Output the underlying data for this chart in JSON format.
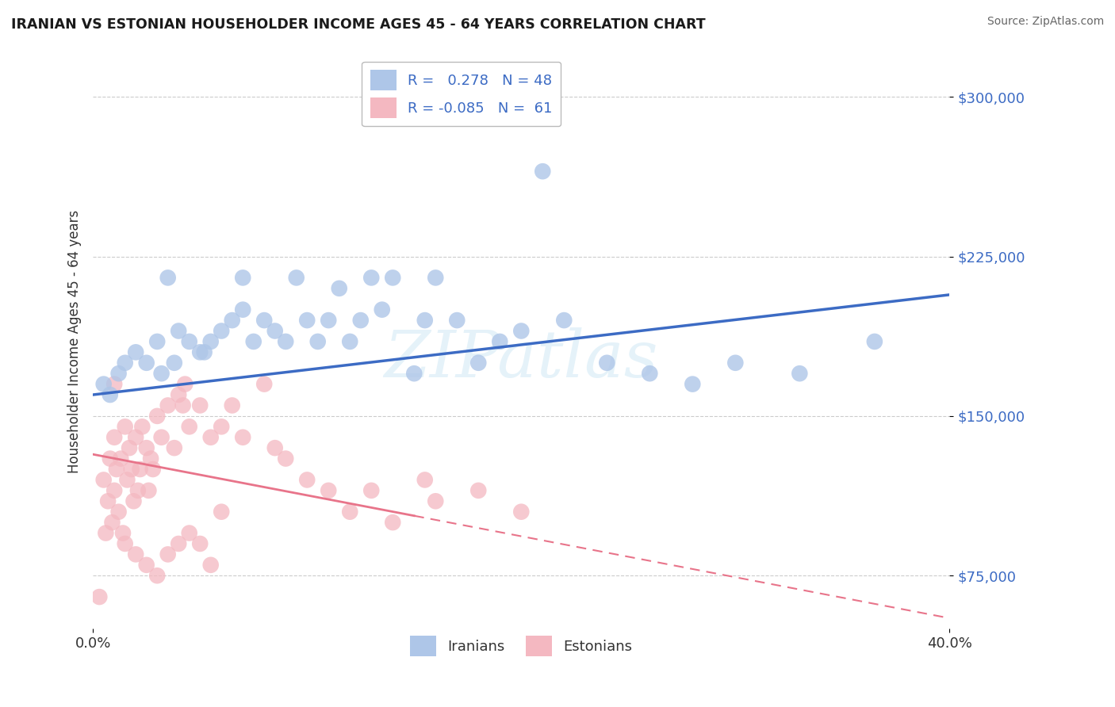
{
  "title": "IRANIAN VS ESTONIAN HOUSEHOLDER INCOME AGES 45 - 64 YEARS CORRELATION CHART",
  "source": "Source: ZipAtlas.com",
  "ylabel": "Householder Income Ages 45 - 64 years",
  "xlim": [
    0.0,
    40.0
  ],
  "ylim": [
    50000,
    320000
  ],
  "yticks": [
    75000,
    150000,
    225000,
    300000
  ],
  "ytick_labels": [
    "$75,000",
    "$150,000",
    "$225,000",
    "$300,000"
  ],
  "watermark_text": "ZIPatlas",
  "legend_bottom": [
    "Iranians",
    "Estonians"
  ],
  "iranian_color": "#aec6e8",
  "estonian_color": "#f4b8c1",
  "iranian_line_color": "#3c6bc4",
  "estonian_line_color": "#e8748a",
  "background_color": "#ffffff",
  "grid_color": "#cccccc",
  "iranian_line_y0": 160000,
  "iranian_line_y1": 207000,
  "estonian_line_y0": 132000,
  "estonian_line_y1": 55000,
  "estonian_solid_end_x": 15.0,
  "iranian_scatter_x": [
    0.5,
    0.8,
    1.2,
    1.5,
    2.0,
    2.5,
    3.0,
    3.5,
    4.0,
    4.5,
    5.0,
    5.5,
    6.0,
    6.5,
    7.0,
    7.0,
    7.5,
    8.0,
    8.5,
    9.0,
    9.5,
    10.0,
    10.5,
    11.0,
    11.5,
    12.0,
    12.5,
    13.0,
    13.5,
    14.0,
    15.0,
    15.5,
    16.0,
    17.0,
    18.0,
    19.0,
    20.0,
    21.0,
    22.0,
    24.0,
    26.0,
    28.0,
    30.0,
    33.0,
    36.5,
    3.2,
    3.8,
    5.2
  ],
  "iranian_scatter_y": [
    165000,
    160000,
    170000,
    175000,
    180000,
    175000,
    185000,
    215000,
    190000,
    185000,
    180000,
    185000,
    190000,
    195000,
    215000,
    200000,
    185000,
    195000,
    190000,
    185000,
    215000,
    195000,
    185000,
    195000,
    210000,
    185000,
    195000,
    215000,
    200000,
    215000,
    170000,
    195000,
    215000,
    195000,
    175000,
    185000,
    190000,
    265000,
    195000,
    175000,
    170000,
    165000,
    175000,
    170000,
    185000,
    170000,
    175000,
    180000
  ],
  "estonian_scatter_x": [
    0.3,
    0.5,
    0.6,
    0.7,
    0.8,
    0.9,
    1.0,
    1.0,
    1.1,
    1.2,
    1.3,
    1.4,
    1.5,
    1.6,
    1.7,
    1.8,
    1.9,
    2.0,
    2.1,
    2.2,
    2.3,
    2.5,
    2.6,
    2.8,
    3.0,
    3.2,
    3.5,
    3.8,
    4.0,
    4.3,
    4.5,
    5.0,
    5.5,
    6.0,
    6.5,
    7.0,
    8.0,
    8.5,
    9.0,
    10.0,
    11.0,
    12.0,
    13.0,
    14.0,
    15.5,
    16.0,
    18.0,
    20.0,
    1.5,
    2.0,
    2.5,
    3.0,
    3.5,
    4.0,
    4.5,
    5.0,
    5.5,
    6.0,
    1.0,
    2.7,
    4.2
  ],
  "estonian_scatter_y": [
    65000,
    120000,
    95000,
    110000,
    130000,
    100000,
    140000,
    115000,
    125000,
    105000,
    130000,
    95000,
    145000,
    120000,
    135000,
    125000,
    110000,
    140000,
    115000,
    125000,
    145000,
    135000,
    115000,
    125000,
    150000,
    140000,
    155000,
    135000,
    160000,
    165000,
    145000,
    155000,
    140000,
    145000,
    155000,
    140000,
    165000,
    135000,
    130000,
    120000,
    115000,
    105000,
    115000,
    100000,
    120000,
    110000,
    115000,
    105000,
    90000,
    85000,
    80000,
    75000,
    85000,
    90000,
    95000,
    90000,
    80000,
    105000,
    165000,
    130000,
    155000
  ]
}
